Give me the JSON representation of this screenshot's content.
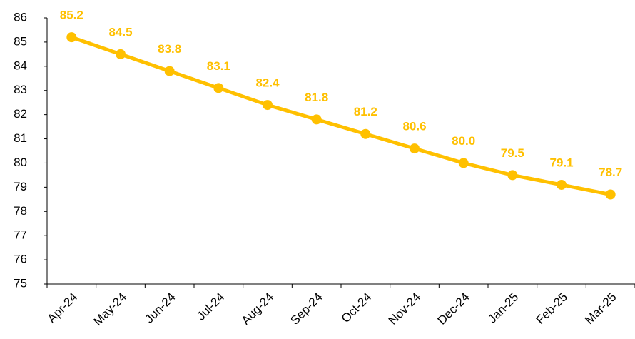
{
  "chart_data": {
    "type": "line",
    "categories": [
      "Apr-24",
      "May-24",
      "Jun-24",
      "Jul-24",
      "Aug-24",
      "Sep-24",
      "Oct-24",
      "Nov-24",
      "Dec-24",
      "Jan-25",
      "Feb-25",
      "Mar-25"
    ],
    "values": [
      85.2,
      84.5,
      83.8,
      83.1,
      82.4,
      81.8,
      81.2,
      80.6,
      80.0,
      79.5,
      79.1,
      78.7
    ],
    "value_labels": [
      "85.2",
      "84.5",
      "83.8",
      "83.1",
      "82.4",
      "81.8",
      "81.2",
      "80.6",
      "80.0",
      "79.5",
      "79.1",
      "78.7"
    ],
    "color": "#ffc000",
    "ylim": [
      75,
      86
    ],
    "yticks": [
      75,
      76,
      77,
      78,
      79,
      80,
      81,
      82,
      83,
      84,
      85,
      86
    ],
    "grid": false
  }
}
